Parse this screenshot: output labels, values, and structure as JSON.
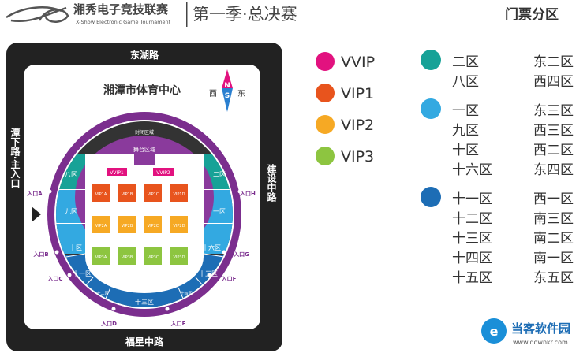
{
  "header": {
    "league_name": "湘秀电子竞技联赛",
    "league_name_en": "X-Show Electronic Game Tournament",
    "event_title": "第一季·总决赛",
    "section_heading": "门票分区"
  },
  "venue": {
    "name": "湘潭市体育中心",
    "compass": {
      "north": "N",
      "south": "S",
      "west": "西",
      "east": "东"
    },
    "roads": {
      "top": "东湖路",
      "left": "潭下路·主入口",
      "right": "建设中路",
      "bottom": "福星中路"
    },
    "areas": {
      "closed": "封闭区域",
      "stage": "舞台区域"
    },
    "sections": {
      "s8": "八区",
      "s2": "二区",
      "s9": "九区",
      "s1": "一区",
      "s10": "十区",
      "s16": "十六区",
      "s11": "十一区",
      "s15": "十五区",
      "s12": "十二区",
      "s14": "十四区",
      "s13": "十三区"
    },
    "vvip": [
      "VVIP1",
      "VVIP2"
    ],
    "vip_rows": [
      [
        "VIP1A",
        "VIP1B",
        "VIP1C",
        "VIP1D"
      ],
      [
        "VIP2A",
        "VIP2B",
        "VIP2C",
        "VIP2D"
      ],
      [
        "VIP3A",
        "VIP3B",
        "VIP3C",
        "VIP3D"
      ]
    ],
    "entrances": {
      "A": "入口A",
      "B": "入口B",
      "C": "入口C",
      "D": "入口D",
      "E": "入口E",
      "F": "入口F",
      "G": "入口G",
      "H": "入口H"
    }
  },
  "legend_tiers": [
    {
      "label": "VVIP",
      "color": "#e2127f"
    },
    {
      "label": "VIP1",
      "color": "#e8541d"
    },
    {
      "label": "VIP2",
      "color": "#f6a924"
    },
    {
      "label": "VIP3",
      "color": "#8dc540"
    }
  ],
  "legend_zones": [
    {
      "color": "#17a297",
      "rows": [
        [
          "二区",
          "东二区"
        ],
        [
          "八区",
          "西四区"
        ]
      ]
    },
    {
      "color": "#33a9e1",
      "rows": [
        [
          "一区",
          "东三区"
        ],
        [
          "九区",
          "西三区"
        ],
        [
          "十区",
          "西二区"
        ],
        [
          "十六区",
          "东四区"
        ]
      ]
    },
    {
      "color": "#1d6db5",
      "rows": [
        [
          "十一区",
          "西一区"
        ],
        [
          "十二区",
          "南三区"
        ],
        [
          "十三区",
          "南二区"
        ],
        [
          "十四区",
          "南一区"
        ],
        [
          "十五区",
          "东五区"
        ]
      ]
    }
  ],
  "colors": {
    "ring": "#7b2e8e",
    "stage": "#8a3a9c",
    "closed": "#333333",
    "road": "#222222",
    "teal": "#17a297",
    "light_blue": "#33a9e1",
    "dark_blue": "#1d6db5"
  },
  "watermark": {
    "name": "当客软件园",
    "url": "www.downkr.com"
  }
}
